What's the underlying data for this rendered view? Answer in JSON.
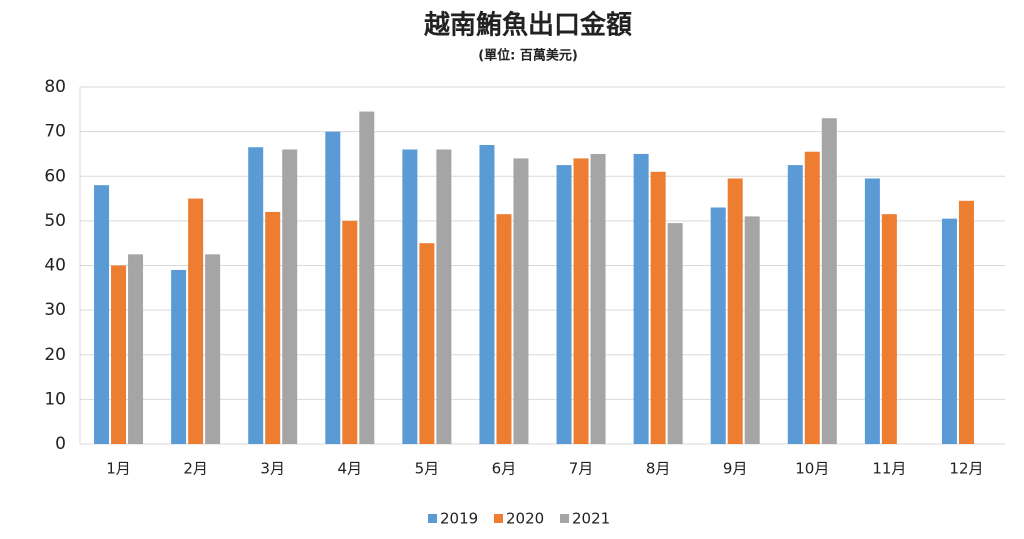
{
  "chart_data": {
    "type": "bar",
    "title": "越南鮪魚出口金額",
    "subtitle": "(單位: 百萬美元)",
    "categories": [
      "1月",
      "2月",
      "3月",
      "4月",
      "5月",
      "6月",
      "7月",
      "8月",
      "9月",
      "10月",
      "11月",
      "12月"
    ],
    "series": [
      {
        "name": "2019",
        "color": "#5b9bd5",
        "values": [
          58,
          39,
          66.5,
          70,
          66,
          67,
          62.5,
          65,
          53,
          62.5,
          59.5,
          50.5
        ]
      },
      {
        "name": "2020",
        "color": "#ed7d31",
        "values": [
          40,
          55,
          52,
          50,
          45,
          51.5,
          64,
          61,
          59.5,
          65.5,
          51.5,
          54.5
        ]
      },
      {
        "name": "2021",
        "color": "#a5a5a5",
        "values": [
          42.5,
          42.5,
          66,
          74.5,
          66,
          64,
          65,
          49.5,
          51,
          73,
          null,
          null
        ]
      }
    ],
    "ylim": [
      0,
      80
    ],
    "yticks": [
      0,
      10,
      20,
      30,
      40,
      50,
      60,
      70,
      80
    ],
    "grid": true,
    "legend": "bottom"
  }
}
